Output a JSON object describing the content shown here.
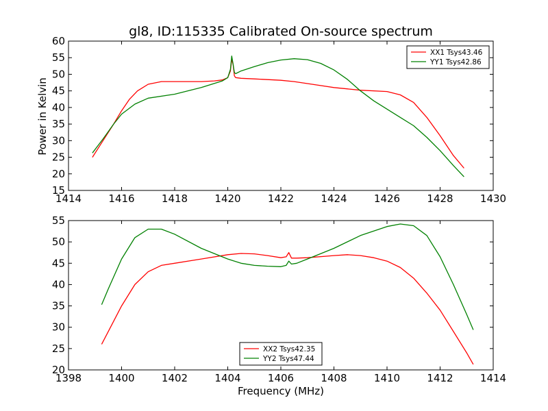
{
  "chart_data": [
    {
      "type": "line",
      "title": "gl8, ID:115335 Calibrated On-source spectrum",
      "xlabel": "",
      "ylabel": "Power in Kelvin",
      "xlim": [
        1414,
        1430
      ],
      "ylim": [
        15,
        60
      ],
      "xticks": [
        1414,
        1416,
        1418,
        1420,
        1422,
        1424,
        1426,
        1428,
        1430
      ],
      "yticks": [
        15,
        20,
        25,
        30,
        35,
        40,
        45,
        50,
        55,
        60
      ],
      "legend_position": "top-right",
      "series": [
        {
          "name": "XX1 Tsys43.46",
          "color": "#ff0000",
          "x": [
            1414.9,
            1415.3,
            1415.7,
            1416.0,
            1416.3,
            1416.6,
            1417.0,
            1417.5,
            1418.0,
            1418.5,
            1419.0,
            1419.5,
            1419.8,
            1420.0,
            1420.1,
            1420.15,
            1420.2,
            1420.25,
            1420.3,
            1420.5,
            1421.0,
            1422.0,
            1422.5,
            1423.0,
            1424.0,
            1425.0,
            1426.0,
            1426.5,
            1427.0,
            1427.5,
            1428.0,
            1428.5,
            1428.9
          ],
          "y": [
            25.0,
            30.0,
            35.0,
            39.0,
            42.5,
            45.0,
            47.0,
            47.8,
            47.8,
            47.8,
            47.8,
            48.0,
            48.3,
            49.0,
            51.0,
            54.5,
            53.0,
            49.5,
            49.0,
            48.8,
            48.6,
            48.2,
            47.8,
            47.2,
            46.0,
            45.2,
            44.8,
            43.8,
            41.5,
            37.0,
            31.5,
            25.5,
            21.7
          ]
        },
        {
          "name": "YY1 Tsys42.86",
          "color": "#008000",
          "x": [
            1414.9,
            1415.3,
            1415.7,
            1416.0,
            1416.5,
            1417.0,
            1418.0,
            1419.0,
            1419.8,
            1420.0,
            1420.1,
            1420.15,
            1420.2,
            1420.25,
            1420.3,
            1420.5,
            1421.0,
            1421.5,
            1422.0,
            1422.5,
            1423.0,
            1423.5,
            1424.0,
            1424.5,
            1425.0,
            1425.5,
            1426.0,
            1426.5,
            1427.0,
            1427.5,
            1428.0,
            1428.5,
            1428.9
          ],
          "y": [
            26.3,
            30.5,
            35.0,
            38.0,
            41.0,
            42.8,
            44.0,
            46.0,
            48.0,
            49.0,
            51.5,
            55.5,
            53.0,
            50.5,
            50.2,
            51.0,
            52.3,
            53.5,
            54.3,
            54.7,
            54.4,
            53.3,
            51.3,
            48.5,
            45.0,
            42.0,
            39.5,
            37.0,
            34.5,
            31.0,
            27.0,
            22.5,
            19.1
          ]
        }
      ]
    },
    {
      "type": "line",
      "title": "",
      "xlabel": "Frequency (MHz)",
      "ylabel": "",
      "xlim": [
        1398,
        1414
      ],
      "ylim": [
        20,
        55
      ],
      "xticks": [
        1398,
        1400,
        1402,
        1404,
        1406,
        1408,
        1410,
        1412,
        1414
      ],
      "yticks": [
        20,
        25,
        30,
        35,
        40,
        45,
        50,
        55
      ],
      "legend_position": "bottom-center",
      "series": [
        {
          "name": "XX2 Tsys42.35",
          "color": "#ff0000",
          "x": [
            1399.25,
            1399.5,
            1400.0,
            1400.5,
            1401.0,
            1401.5,
            1402.0,
            1403.0,
            1404.0,
            1404.5,
            1405.0,
            1405.5,
            1406.0,
            1406.2,
            1406.3,
            1406.4,
            1406.6,
            1407.0,
            1408.0,
            1408.5,
            1409.0,
            1409.5,
            1410.0,
            1410.5,
            1411.0,
            1411.5,
            1412.0,
            1412.5,
            1413.0,
            1413.25
          ],
          "y": [
            26.0,
            29.0,
            35.0,
            40.0,
            43.0,
            44.5,
            45.0,
            46.0,
            47.0,
            47.3,
            47.2,
            46.8,
            46.3,
            46.5,
            47.5,
            46.2,
            46.2,
            46.3,
            46.8,
            47.0,
            46.8,
            46.3,
            45.5,
            44.0,
            41.5,
            38.0,
            34.0,
            29.0,
            24.0,
            21.3
          ]
        },
        {
          "name": "YY2 Tsys47.44",
          "color": "#008000",
          "x": [
            1399.25,
            1399.5,
            1400.0,
            1400.5,
            1401.0,
            1401.5,
            1402.0,
            1403.0,
            1404.0,
            1404.5,
            1405.0,
            1405.5,
            1406.0,
            1406.2,
            1406.3,
            1406.4,
            1406.6,
            1407.0,
            1408.0,
            1409.0,
            1410.0,
            1410.5,
            1411.0,
            1411.5,
            1412.0,
            1412.5,
            1413.0,
            1413.25
          ],
          "y": [
            35.3,
            39.0,
            46.0,
            51.0,
            53.0,
            53.0,
            51.8,
            48.5,
            46.0,
            45.0,
            44.5,
            44.3,
            44.2,
            44.5,
            45.5,
            44.8,
            45.0,
            46.0,
            48.5,
            51.5,
            53.6,
            54.2,
            53.8,
            51.5,
            46.5,
            40.0,
            33.0,
            29.4
          ]
        }
      ]
    }
  ]
}
